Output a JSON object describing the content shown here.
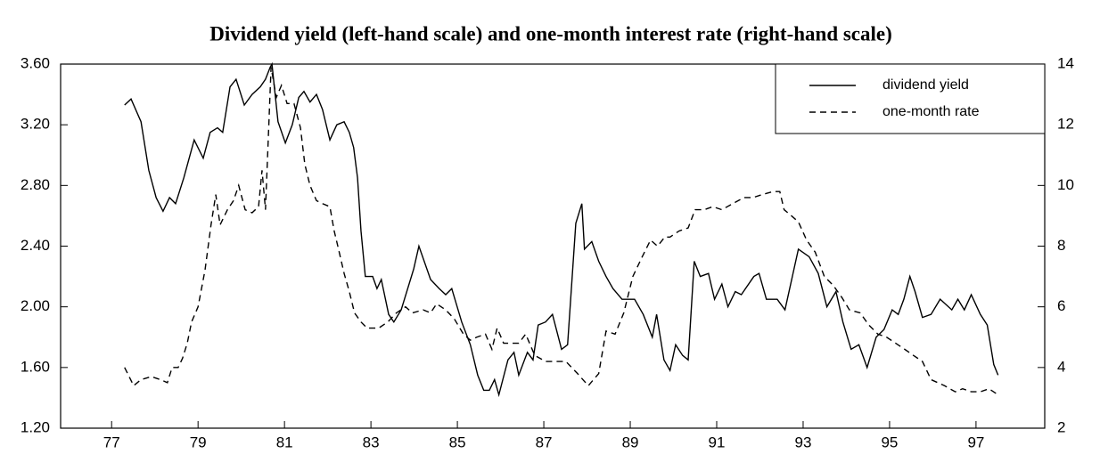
{
  "chart_data": {
    "type": "line",
    "title": "Dividend yield (left-hand scale) and one-month interest rate (right-hand scale)",
    "xlim": [
      75.82,
      98.59
    ],
    "xticks": [
      77,
      79,
      81,
      83,
      85,
      87,
      89,
      91,
      93,
      95,
      97
    ],
    "ylim": [
      1.2,
      3.6
    ],
    "yticks": [
      {
        "value": 1.2,
        "label": "1.20"
      },
      {
        "value": 1.6,
        "label": "1.60"
      },
      {
        "value": 2.0,
        "label": "2.00"
      },
      {
        "value": 2.4,
        "label": "2.40"
      },
      {
        "value": 2.8,
        "label": "2.80"
      },
      {
        "value": 3.2,
        "label": "3.20"
      },
      {
        "value": 3.6,
        "label": "3.60"
      }
    ],
    "y2lim": [
      2,
      14
    ],
    "y2ticks": [
      2,
      4,
      6,
      8,
      10,
      12,
      14
    ],
    "legend": "top-right",
    "series": [
      {
        "name": "dividend yield",
        "color": "#000000",
        "style": "solid",
        "x": [
          77.3,
          77.45,
          77.68,
          77.86,
          78.03,
          78.19,
          78.34,
          78.48,
          78.67,
          78.91,
          79.12,
          79.28,
          79.45,
          79.57,
          79.74,
          79.88,
          80.07,
          80.25,
          80.44,
          80.56,
          80.67,
          80.71,
          80.85,
          81.02,
          81.18,
          81.33,
          81.45,
          81.59,
          81.74,
          81.88,
          82.05,
          82.21,
          82.38,
          82.5,
          82.6,
          82.69,
          82.77,
          82.87,
          83.04,
          83.14,
          83.24,
          83.41,
          83.53,
          83.7,
          83.99,
          84.11,
          84.38,
          84.58,
          84.73,
          84.87,
          85.1,
          85.3,
          85.47,
          85.61,
          85.74,
          85.86,
          85.96,
          86.17,
          86.31,
          86.42,
          86.62,
          86.75,
          86.87,
          87.04,
          87.2,
          87.41,
          87.55,
          87.74,
          87.88,
          87.94,
          88.11,
          88.27,
          88.44,
          88.6,
          88.81,
          89.1,
          89.3,
          89.51,
          89.61,
          89.78,
          89.92,
          90.05,
          90.21,
          90.34,
          90.48,
          90.62,
          90.81,
          90.95,
          91.12,
          91.26,
          91.43,
          91.57,
          91.86,
          91.98,
          92.15,
          92.4,
          92.58,
          92.89,
          93.14,
          93.35,
          93.55,
          93.76,
          93.92,
          94.11,
          94.29,
          94.48,
          94.69,
          94.87,
          95.06,
          95.2,
          95.33,
          95.47,
          95.59,
          95.76,
          95.96,
          96.17,
          96.44,
          96.58,
          96.73,
          96.89,
          97.1,
          97.26,
          97.41,
          97.51
        ],
        "values": [
          3.33,
          3.37,
          3.22,
          2.9,
          2.72,
          2.63,
          2.72,
          2.68,
          2.85,
          3.1,
          2.98,
          3.15,
          3.18,
          3.15,
          3.45,
          3.5,
          3.33,
          3.4,
          3.45,
          3.5,
          3.58,
          3.6,
          3.22,
          3.08,
          3.2,
          3.38,
          3.42,
          3.35,
          3.4,
          3.3,
          3.1,
          3.2,
          3.22,
          3.15,
          3.05,
          2.85,
          2.5,
          2.2,
          2.2,
          2.12,
          2.18,
          1.95,
          1.9,
          1.98,
          2.25,
          2.4,
          2.18,
          2.12,
          2.08,
          2.12,
          1.9,
          1.75,
          1.55,
          1.45,
          1.45,
          1.52,
          1.42,
          1.65,
          1.7,
          1.55,
          1.7,
          1.65,
          1.88,
          1.9,
          1.95,
          1.72,
          1.75,
          2.55,
          2.68,
          2.38,
          2.43,
          2.3,
          2.2,
          2.12,
          2.05,
          2.05,
          1.95,
          1.8,
          1.95,
          1.65,
          1.58,
          1.75,
          1.68,
          1.65,
          2.3,
          2.2,
          2.22,
          2.05,
          2.15,
          2.0,
          2.1,
          2.08,
          2.2,
          2.22,
          2.05,
          2.05,
          1.98,
          2.38,
          2.33,
          2.22,
          2.0,
          2.1,
          1.9,
          1.72,
          1.75,
          1.6,
          1.8,
          1.85,
          1.98,
          1.95,
          2.05,
          2.2,
          2.1,
          1.93,
          1.95,
          2.05,
          1.98,
          2.05,
          1.98,
          2.08,
          1.95,
          1.88,
          1.62,
          1.55
        ]
      },
      {
        "name": "one-month rate",
        "color": "#000000",
        "style": "dashed",
        "axis": "y2",
        "x": [
          77.3,
          77.51,
          77.68,
          77.92,
          78.13,
          78.29,
          78.4,
          78.54,
          78.64,
          78.75,
          78.85,
          79.0,
          79.16,
          79.3,
          79.41,
          79.51,
          79.68,
          79.82,
          79.94,
          80.09,
          80.25,
          80.4,
          80.48,
          80.56,
          80.69,
          80.81,
          80.93,
          81.06,
          81.22,
          81.37,
          81.47,
          81.59,
          81.74,
          81.88,
          82.05,
          82.15,
          82.25,
          82.38,
          82.5,
          82.62,
          82.77,
          82.91,
          83.18,
          83.39,
          83.59,
          83.8,
          83.96,
          84.21,
          84.38,
          84.52,
          84.73,
          84.93,
          85.14,
          85.3,
          85.45,
          85.65,
          85.8,
          85.92,
          86.07,
          86.25,
          86.42,
          86.58,
          86.79,
          87.04,
          87.28,
          87.51,
          87.78,
          88.03,
          88.27,
          88.44,
          88.65,
          88.85,
          89.06,
          89.26,
          89.47,
          89.63,
          89.8,
          89.92,
          90.13,
          90.34,
          90.5,
          90.71,
          90.91,
          91.12,
          91.37,
          91.63,
          91.84,
          92.05,
          92.31,
          92.46,
          92.56,
          92.73,
          92.89,
          93.08,
          93.28,
          93.49,
          93.7,
          93.9,
          94.07,
          94.32,
          94.52,
          94.73,
          94.93,
          95.14,
          95.35,
          95.55,
          95.76,
          95.96,
          96.27,
          96.52,
          96.69,
          96.89,
          97.1,
          97.3,
          97.51
        ],
        "values": [
          4.0,
          3.4,
          3.6,
          3.7,
          3.6,
          3.5,
          4.0,
          4.0,
          4.3,
          4.8,
          5.5,
          6.0,
          7.2,
          8.7,
          9.7,
          8.7,
          9.2,
          9.5,
          10.0,
          9.2,
          9.1,
          9.3,
          10.5,
          9.2,
          13.9,
          12.9,
          13.3,
          12.7,
          12.7,
          11.9,
          10.7,
          10.0,
          9.5,
          9.4,
          9.3,
          8.5,
          7.9,
          7.1,
          6.5,
          5.8,
          5.5,
          5.3,
          5.3,
          5.5,
          5.8,
          6.0,
          5.8,
          5.9,
          5.8,
          6.1,
          5.9,
          5.6,
          5.1,
          4.9,
          5.0,
          5.1,
          4.6,
          5.3,
          4.8,
          4.8,
          4.8,
          5.1,
          4.4,
          4.2,
          4.2,
          4.2,
          3.8,
          3.4,
          3.8,
          5.2,
          5.1,
          5.8,
          7.0,
          7.6,
          8.2,
          8.0,
          8.3,
          8.3,
          8.5,
          8.6,
          9.2,
          9.2,
          9.3,
          9.2,
          9.4,
          9.6,
          9.6,
          9.7,
          9.8,
          9.8,
          9.2,
          9.0,
          8.8,
          8.2,
          7.8,
          7.0,
          6.7,
          6.3,
          5.9,
          5.8,
          5.4,
          5.1,
          5.0,
          4.8,
          4.6,
          4.4,
          4.2,
          3.6,
          3.4,
          3.2,
          3.3,
          3.2,
          3.2,
          3.3,
          3.1
        ]
      }
    ]
  }
}
